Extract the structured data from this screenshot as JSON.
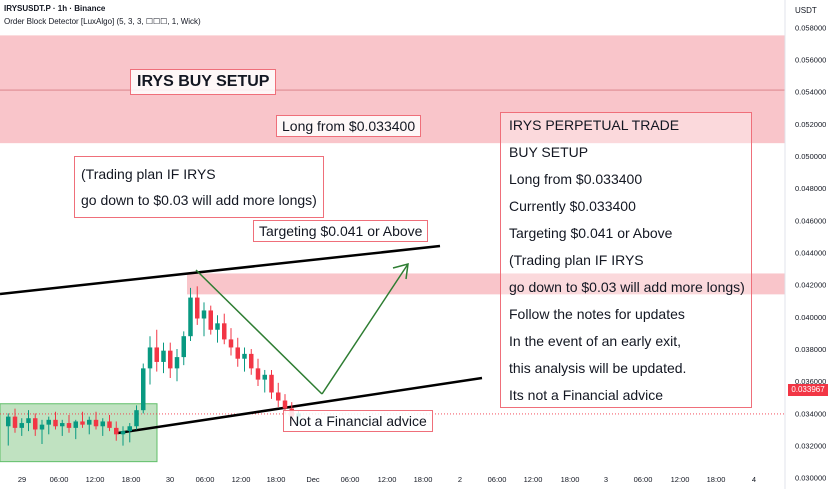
{
  "header": {
    "title": "IRYSUSDT.P · 1h · Binance",
    "indicator": "Order Block Detector [LuxAlgo] (5, 3, 3, ☐☐☐, 1, Wick)",
    "currency": "USDT"
  },
  "price_tag": "0.033967",
  "annotations": {
    "setup_title": "IRYS BUY SETUP",
    "long_from": "Long from $0.033400",
    "plan_line1": "(Trading plan IF IRYS",
    "plan_line2": "go down to $0.03 will add more longs)",
    "target": "Targeting $0.041 or Above",
    "disclaimer": "Not a Financial advice"
  },
  "trade_box": {
    "lines": [
      "IRYS PERPETUAL TRADE",
      "BUY SETUP",
      "Long from $0.033400",
      "Currently $0.033400",
      "Targeting $0.041 or Above",
      "(Trading plan IF IRYS",
      "go down to $0.03 will add more longs)",
      "Follow the notes for updates",
      "In the event of an early exit,",
      "this analysis will be updated.",
      "Its not a Financial advice"
    ]
  },
  "colors": {
    "up": "#089981",
    "down": "#f23645",
    "zone": "#f7b2b8",
    "demand": "#a5d6a7",
    "line": "#000000",
    "arrow": "#2e7d32"
  },
  "chart_data": {
    "type": "candlestick",
    "symbol": "IRYSUSDT.P",
    "timeframe": "1h",
    "y_ticks": [
      "0.058000",
      "0.056000",
      "0.054000",
      "0.052000",
      "0.050000",
      "0.048000",
      "0.046000",
      "0.044000",
      "0.042000",
      "0.040000",
      "0.038000",
      "0.036000",
      "0.034000",
      "0.032000",
      "0.030000"
    ],
    "ylim": [
      0.0293,
      0.0597
    ],
    "x_ticks": [
      "29",
      "06:00",
      "12:00",
      "18:00",
      "30",
      "06:00",
      "12:00",
      "18:00",
      "Dec",
      "06:00",
      "12:00",
      "18:00",
      "2",
      "06:00",
      "12:00",
      "18:00",
      "3",
      "06:00",
      "12:00",
      "18:00",
      "4"
    ],
    "last_price": 0.033967,
    "candles": [
      {
        "o": 0.0332,
        "h": 0.034,
        "l": 0.032,
        "c": 0.0338
      },
      {
        "o": 0.0338,
        "h": 0.0343,
        "l": 0.0328,
        "c": 0.0331
      },
      {
        "o": 0.0331,
        "h": 0.0337,
        "l": 0.0326,
        "c": 0.0334
      },
      {
        "o": 0.0334,
        "h": 0.0342,
        "l": 0.0329,
        "c": 0.0337
      },
      {
        "o": 0.0337,
        "h": 0.034,
        "l": 0.0326,
        "c": 0.033
      },
      {
        "o": 0.033,
        "h": 0.0336,
        "l": 0.0321,
        "c": 0.0333
      },
      {
        "o": 0.0333,
        "h": 0.0338,
        "l": 0.0327,
        "c": 0.0336
      },
      {
        "o": 0.0336,
        "h": 0.0341,
        "l": 0.033,
        "c": 0.0332
      },
      {
        "o": 0.0332,
        "h": 0.0336,
        "l": 0.0326,
        "c": 0.0334
      },
      {
        "o": 0.0334,
        "h": 0.0339,
        "l": 0.0328,
        "c": 0.0331
      },
      {
        "o": 0.0331,
        "h": 0.0336,
        "l": 0.0324,
        "c": 0.0335
      },
      {
        "o": 0.0335,
        "h": 0.0341,
        "l": 0.0331,
        "c": 0.0333
      },
      {
        "o": 0.0333,
        "h": 0.0338,
        "l": 0.0327,
        "c": 0.0336
      },
      {
        "o": 0.0336,
        "h": 0.0341,
        "l": 0.033,
        "c": 0.0332
      },
      {
        "o": 0.0332,
        "h": 0.0337,
        "l": 0.0326,
        "c": 0.0335
      },
      {
        "o": 0.0335,
        "h": 0.0339,
        "l": 0.0329,
        "c": 0.0331
      },
      {
        "o": 0.0331,
        "h": 0.0335,
        "l": 0.0323,
        "c": 0.0327
      },
      {
        "o": 0.0327,
        "h": 0.0332,
        "l": 0.032,
        "c": 0.0329
      },
      {
        "o": 0.0329,
        "h": 0.0334,
        "l": 0.0322,
        "c": 0.0332
      },
      {
        "o": 0.0332,
        "h": 0.0345,
        "l": 0.033,
        "c": 0.0342
      },
      {
        "o": 0.0342,
        "h": 0.0371,
        "l": 0.034,
        "c": 0.0368
      },
      {
        "o": 0.0368,
        "h": 0.0388,
        "l": 0.0358,
        "c": 0.0381
      },
      {
        "o": 0.0381,
        "h": 0.0392,
        "l": 0.0366,
        "c": 0.0372
      },
      {
        "o": 0.0372,
        "h": 0.0384,
        "l": 0.0365,
        "c": 0.0379
      },
      {
        "o": 0.0379,
        "h": 0.0384,
        "l": 0.0362,
        "c": 0.0368
      },
      {
        "o": 0.0368,
        "h": 0.038,
        "l": 0.036,
        "c": 0.0375
      },
      {
        "o": 0.0375,
        "h": 0.0391,
        "l": 0.037,
        "c": 0.0388
      },
      {
        "o": 0.0388,
        "h": 0.0418,
        "l": 0.0385,
        "c": 0.0412
      },
      {
        "o": 0.0412,
        "h": 0.0419,
        "l": 0.0395,
        "c": 0.0399
      },
      {
        "o": 0.0399,
        "h": 0.0409,
        "l": 0.0388,
        "c": 0.0404
      },
      {
        "o": 0.0404,
        "h": 0.0407,
        "l": 0.0389,
        "c": 0.0392
      },
      {
        "o": 0.0392,
        "h": 0.0401,
        "l": 0.0384,
        "c": 0.0396
      },
      {
        "o": 0.0396,
        "h": 0.0402,
        "l": 0.0383,
        "c": 0.0386
      },
      {
        "o": 0.0386,
        "h": 0.0393,
        "l": 0.0376,
        "c": 0.0381
      },
      {
        "o": 0.0381,
        "h": 0.0387,
        "l": 0.0369,
        "c": 0.0374
      },
      {
        "o": 0.0374,
        "h": 0.0381,
        "l": 0.0366,
        "c": 0.0377
      },
      {
        "o": 0.0377,
        "h": 0.038,
        "l": 0.0364,
        "c": 0.0368
      },
      {
        "o": 0.0368,
        "h": 0.0374,
        "l": 0.0357,
        "c": 0.0361
      },
      {
        "o": 0.0361,
        "h": 0.0367,
        "l": 0.0353,
        "c": 0.0364
      },
      {
        "o": 0.0364,
        "h": 0.0367,
        "l": 0.0349,
        "c": 0.0353
      },
      {
        "o": 0.0353,
        "h": 0.0359,
        "l": 0.0344,
        "c": 0.0348
      },
      {
        "o": 0.0348,
        "h": 0.0352,
        "l": 0.034,
        "c": 0.0343
      },
      {
        "o": 0.0343,
        "h": 0.0347,
        "l": 0.0335,
        "c": 0.0338
      },
      {
        "o": 0.0338,
        "h": 0.0342,
        "l": 0.0333,
        "c": 0.034
      }
    ]
  }
}
